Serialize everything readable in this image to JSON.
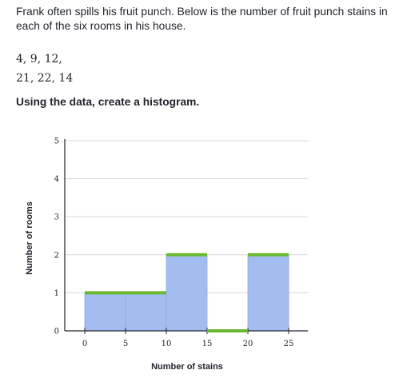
{
  "problem_text": "Frank often spills his fruit punch. Below is the number of fruit punch stains in each of the six rooms in his house.",
  "data_lines": [
    "4, 9, 12,",
    "21, 22, 14"
  ],
  "instruction": "Using the data, create a histogram.",
  "chart_data": {
    "type": "bar",
    "bins": [
      {
        "start": 0,
        "end": 5,
        "value": 1
      },
      {
        "start": 5,
        "end": 10,
        "value": 1
      },
      {
        "start": 10,
        "end": 15,
        "value": 2
      },
      {
        "start": 15,
        "end": 20,
        "value": 0
      },
      {
        "start": 20,
        "end": 25,
        "value": 2
      }
    ],
    "xticks": [
      0,
      5,
      10,
      15,
      20,
      25
    ],
    "yticks": [
      0,
      1,
      2,
      3,
      4,
      5
    ],
    "xlim": [
      0,
      25
    ],
    "ylim": [
      0,
      5
    ],
    "xlabel": "Number of stains",
    "ylabel": "Number of rooms",
    "grid": true,
    "colors": {
      "bar_fill": "#a4bdf0",
      "bar_handle": "#6ab82e",
      "grid": "#d8d8d8",
      "axis": "#21242c"
    }
  }
}
